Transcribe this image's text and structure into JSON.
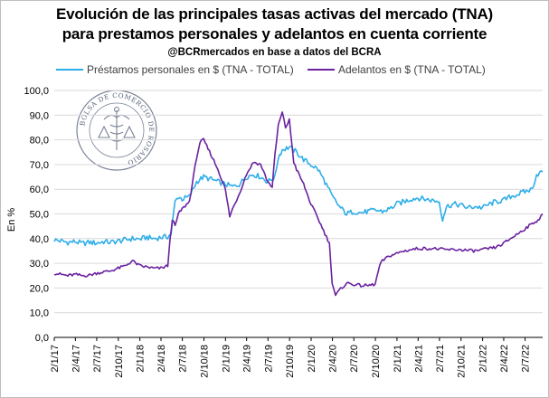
{
  "header": {
    "title_line1": "Evolución de las principales tasas activas del mercado (TNA)",
    "title_line2": "para prestamos personales y adelantos en cuenta corriente",
    "source": "@BCRmercados en base a datos del BCRA"
  },
  "watermark": {
    "text": "BOLSA DE COMERCIO DE ROSARIO",
    "icon": "caduceus-seal"
  },
  "colors": {
    "personales": "#2eaee8",
    "adelantos": "#6a22a0",
    "grid": "#d9d9d9"
  },
  "chart_data": {
    "type": "line",
    "title": "Evolución de las principales tasas activas del mercado (TNA) para prestamos personales y adelantos en cuenta corriente",
    "subtitle": "@BCRmercados en base a datos del BCRA",
    "ylabel": "En %",
    "ylim": [
      0,
      100
    ],
    "yticks": [
      "0,0",
      "10,0",
      "20,0",
      "30,0",
      "40,0",
      "50,0",
      "60,0",
      "70,0",
      "80,0",
      "90,0",
      "100,0"
    ],
    "xlim": [
      "2017-01-02",
      "2022-09-15"
    ],
    "xticks": [
      "2/1/17",
      "2/4/17",
      "2/7/17",
      "2/10/17",
      "2/1/18",
      "2/4/18",
      "2/7/18",
      "2/10/18",
      "2/1/19",
      "2/4/19",
      "2/7/19",
      "2/10/19",
      "2/1/20",
      "2/4/20",
      "2/7/20",
      "2/10/20",
      "2/1/21",
      "2/4/21",
      "2/7/21",
      "2/10/21",
      "2/1/22",
      "2/4/22",
      "2/7/22"
    ],
    "legend_position": "top",
    "grid": "horizontal",
    "series": [
      {
        "name": "Préstamos personales en $ (TNA - TOTAL)",
        "color": "#2eaee8",
        "points": [
          [
            "2017-01-02",
            39.5
          ],
          [
            "2017-02-01",
            39
          ],
          [
            "2017-03-01",
            38.5
          ],
          [
            "2017-04-01",
            38.8
          ],
          [
            "2017-05-01",
            38
          ],
          [
            "2017-06-01",
            38.5
          ],
          [
            "2017-07-01",
            38.2
          ],
          [
            "2017-08-01",
            38.8
          ],
          [
            "2017-09-01",
            38.5
          ],
          [
            "2017-10-01",
            39
          ],
          [
            "2017-11-01",
            39.5
          ],
          [
            "2017-12-01",
            40
          ],
          [
            "2018-01-01",
            39.8
          ],
          [
            "2018-02-01",
            40.5
          ],
          [
            "2018-03-01",
            40
          ],
          [
            "2018-04-01",
            40.5
          ],
          [
            "2018-05-01",
            40.8
          ],
          [
            "2018-05-15",
            42
          ],
          [
            "2018-06-01",
            55
          ],
          [
            "2018-06-15",
            57
          ],
          [
            "2018-07-01",
            56
          ],
          [
            "2018-08-01",
            57
          ],
          [
            "2018-09-01",
            63
          ],
          [
            "2018-10-01",
            65
          ],
          [
            "2018-11-01",
            64
          ],
          [
            "2018-12-01",
            63
          ],
          [
            "2019-01-01",
            62
          ],
          [
            "2019-02-01",
            61
          ],
          [
            "2019-03-01",
            62
          ],
          [
            "2019-04-01",
            65
          ],
          [
            "2019-05-01",
            66
          ],
          [
            "2019-06-01",
            65
          ],
          [
            "2019-07-01",
            63
          ],
          [
            "2019-08-01",
            65
          ],
          [
            "2019-08-15",
            73
          ],
          [
            "2019-09-01",
            76
          ],
          [
            "2019-10-01",
            77
          ],
          [
            "2019-11-01",
            75
          ],
          [
            "2019-12-01",
            72
          ],
          [
            "2020-01-01",
            70
          ],
          [
            "2020-02-01",
            68
          ],
          [
            "2020-03-01",
            63
          ],
          [
            "2020-04-01",
            57
          ],
          [
            "2020-05-01",
            53
          ],
          [
            "2020-06-01",
            50
          ],
          [
            "2020-07-01",
            51
          ],
          [
            "2020-08-01",
            50.5
          ],
          [
            "2020-09-01",
            51
          ],
          [
            "2020-10-01",
            51.5
          ],
          [
            "2020-11-01",
            51
          ],
          [
            "2020-12-01",
            52
          ],
          [
            "2021-01-01",
            54
          ],
          [
            "2021-02-01",
            55
          ],
          [
            "2021-03-01",
            56
          ],
          [
            "2021-04-01",
            56.5
          ],
          [
            "2021-05-01",
            56
          ],
          [
            "2021-06-01",
            55.5
          ],
          [
            "2021-07-01",
            55
          ],
          [
            "2021-07-15",
            48
          ],
          [
            "2021-08-01",
            53
          ],
          [
            "2021-09-01",
            54
          ],
          [
            "2021-10-01",
            53.5
          ],
          [
            "2021-11-01",
            52.5
          ],
          [
            "2021-12-01",
            53
          ],
          [
            "2022-01-01",
            52.5
          ],
          [
            "2022-02-01",
            54
          ],
          [
            "2022-03-01",
            55
          ],
          [
            "2022-04-01",
            55.5
          ],
          [
            "2022-05-01",
            57
          ],
          [
            "2022-06-01",
            58
          ],
          [
            "2022-07-01",
            59
          ],
          [
            "2022-08-01",
            60
          ],
          [
            "2022-08-20",
            66
          ],
          [
            "2022-09-15",
            67
          ]
        ]
      },
      {
        "name": "Adelantos en $ (TNA - TOTAL)",
        "color": "#6a22a0",
        "points": [
          [
            "2017-01-02",
            26
          ],
          [
            "2017-02-01",
            25.5
          ],
          [
            "2017-03-01",
            25
          ],
          [
            "2017-04-01",
            25.5
          ],
          [
            "2017-05-01",
            25
          ],
          [
            "2017-06-01",
            25.2
          ],
          [
            "2017-07-01",
            26
          ],
          [
            "2017-08-01",
            26.5
          ],
          [
            "2017-09-01",
            27
          ],
          [
            "2017-10-01",
            28
          ],
          [
            "2017-11-01",
            29
          ],
          [
            "2017-12-01",
            31
          ],
          [
            "2018-01-01",
            29
          ],
          [
            "2018-02-01",
            28.5
          ],
          [
            "2018-03-01",
            28
          ],
          [
            "2018-04-01",
            28
          ],
          [
            "2018-05-01",
            29
          ],
          [
            "2018-05-10",
            39
          ],
          [
            "2018-05-20",
            48
          ],
          [
            "2018-06-01",
            45
          ],
          [
            "2018-06-15",
            50
          ],
          [
            "2018-07-01",
            52
          ],
          [
            "2018-08-01",
            55
          ],
          [
            "2018-08-20",
            66
          ],
          [
            "2018-09-01",
            73
          ],
          [
            "2018-09-15",
            79
          ],
          [
            "2018-10-01",
            80
          ],
          [
            "2018-11-01",
            74
          ],
          [
            "2018-12-01",
            68
          ],
          [
            "2019-01-01",
            60
          ],
          [
            "2019-01-20",
            49
          ],
          [
            "2019-02-01",
            52
          ],
          [
            "2019-03-01",
            58
          ],
          [
            "2019-04-01",
            66
          ],
          [
            "2019-05-01",
            71
          ],
          [
            "2019-06-01",
            70
          ],
          [
            "2019-07-01",
            63
          ],
          [
            "2019-07-20",
            61
          ],
          [
            "2019-08-01",
            74
          ],
          [
            "2019-08-15",
            86
          ],
          [
            "2019-09-01",
            91
          ],
          [
            "2019-09-15",
            85
          ],
          [
            "2019-10-01",
            88
          ],
          [
            "2019-10-20",
            71
          ],
          [
            "2019-11-01",
            68
          ],
          [
            "2019-12-01",
            62
          ],
          [
            "2020-01-01",
            54
          ],
          [
            "2020-02-01",
            48
          ],
          [
            "2020-03-01",
            42
          ],
          [
            "2020-03-20",
            38
          ],
          [
            "2020-04-01",
            22
          ],
          [
            "2020-04-15",
            17
          ],
          [
            "2020-05-01",
            19
          ],
          [
            "2020-06-01",
            22
          ],
          [
            "2020-07-01",
            21.5
          ],
          [
            "2020-08-01",
            21
          ],
          [
            "2020-09-01",
            21
          ],
          [
            "2020-10-01",
            21.5
          ],
          [
            "2020-10-20",
            29
          ],
          [
            "2020-11-01",
            31
          ],
          [
            "2020-12-01",
            33
          ],
          [
            "2021-01-01",
            34
          ],
          [
            "2021-02-01",
            35
          ],
          [
            "2021-03-01",
            35.5
          ],
          [
            "2021-04-01",
            36
          ],
          [
            "2021-06-01",
            36
          ],
          [
            "2021-08-01",
            35.5
          ],
          [
            "2021-10-01",
            35.5
          ],
          [
            "2021-12-01",
            35
          ],
          [
            "2022-01-01",
            35.5
          ],
          [
            "2022-02-01",
            36
          ],
          [
            "2022-03-01",
            36.5
          ],
          [
            "2022-04-01",
            38
          ],
          [
            "2022-05-01",
            40
          ],
          [
            "2022-06-01",
            42
          ],
          [
            "2022-07-01",
            44
          ],
          [
            "2022-08-01",
            46
          ],
          [
            "2022-09-01",
            48
          ],
          [
            "2022-09-15",
            50
          ]
        ]
      }
    ]
  }
}
